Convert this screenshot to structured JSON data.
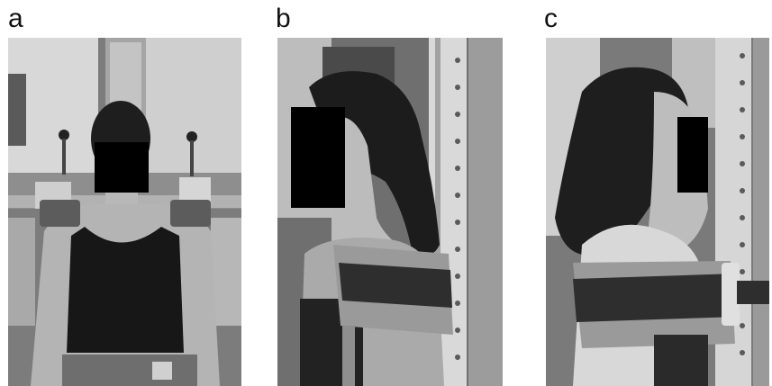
{
  "panels": [
    {
      "label": "a",
      "view": "front"
    },
    {
      "label": "b",
      "view": "side-left"
    },
    {
      "label": "c",
      "view": "side-right"
    }
  ],
  "colors": {
    "background": "#ffffff",
    "redaction": "#000000",
    "strap": "#2e2e2e",
    "pad": "#9a9a9a",
    "hair": "#1e1e1e",
    "skin": "#b8b8b8"
  }
}
